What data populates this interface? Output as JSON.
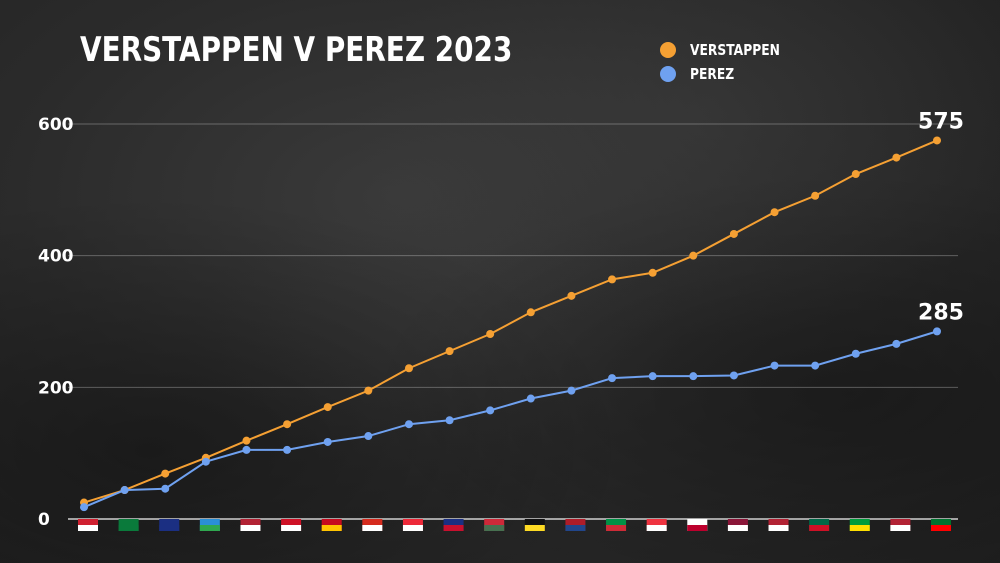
{
  "title": "VERSTAPPEN V PEREZ 2023",
  "legend": [
    {
      "label": "VERSTAPPEN",
      "color": "#f5a033"
    },
    {
      "label": "PEREZ",
      "color": "#6fa1f0"
    }
  ],
  "chart_data": {
    "type": "line",
    "title": "VERSTAPPEN V PEREZ 2023",
    "xlabel": "",
    "ylabel": "",
    "ylim": [
      0,
      600
    ],
    "yticks": [
      "0",
      "200",
      "400",
      "600"
    ],
    "grid": true,
    "legend_position": "top-right",
    "x": [
      "Bahrain",
      "Saudi Arabia",
      "Australia",
      "Azerbaijan",
      "Miami",
      "Monaco",
      "Spain",
      "Canada",
      "Austria",
      "Great Britain",
      "Hungary",
      "Belgium",
      "Netherlands",
      "Italy",
      "Singapore",
      "Japan",
      "Qatar",
      "United States",
      "Mexico",
      "Brazil",
      "Las Vegas",
      "Abu Dhabi"
    ],
    "series": [
      {
        "name": "VERSTAPPEN",
        "color": "#f5a033",
        "values": [
          25,
          44,
          69,
          93,
          119,
          144,
          170,
          195,
          229,
          255,
          281,
          314,
          339,
          364,
          374,
          400,
          433,
          466,
          491,
          524,
          549,
          575
        ]
      },
      {
        "name": "PEREZ",
        "color": "#6fa1f0",
        "values": [
          18,
          44,
          46,
          87,
          105,
          105,
          117,
          126,
          144,
          150,
          165,
          183,
          195,
          214,
          217,
          217,
          218,
          233,
          233,
          251,
          266,
          285
        ]
      }
    ],
    "end_labels": [
      "575",
      "285"
    ]
  }
}
